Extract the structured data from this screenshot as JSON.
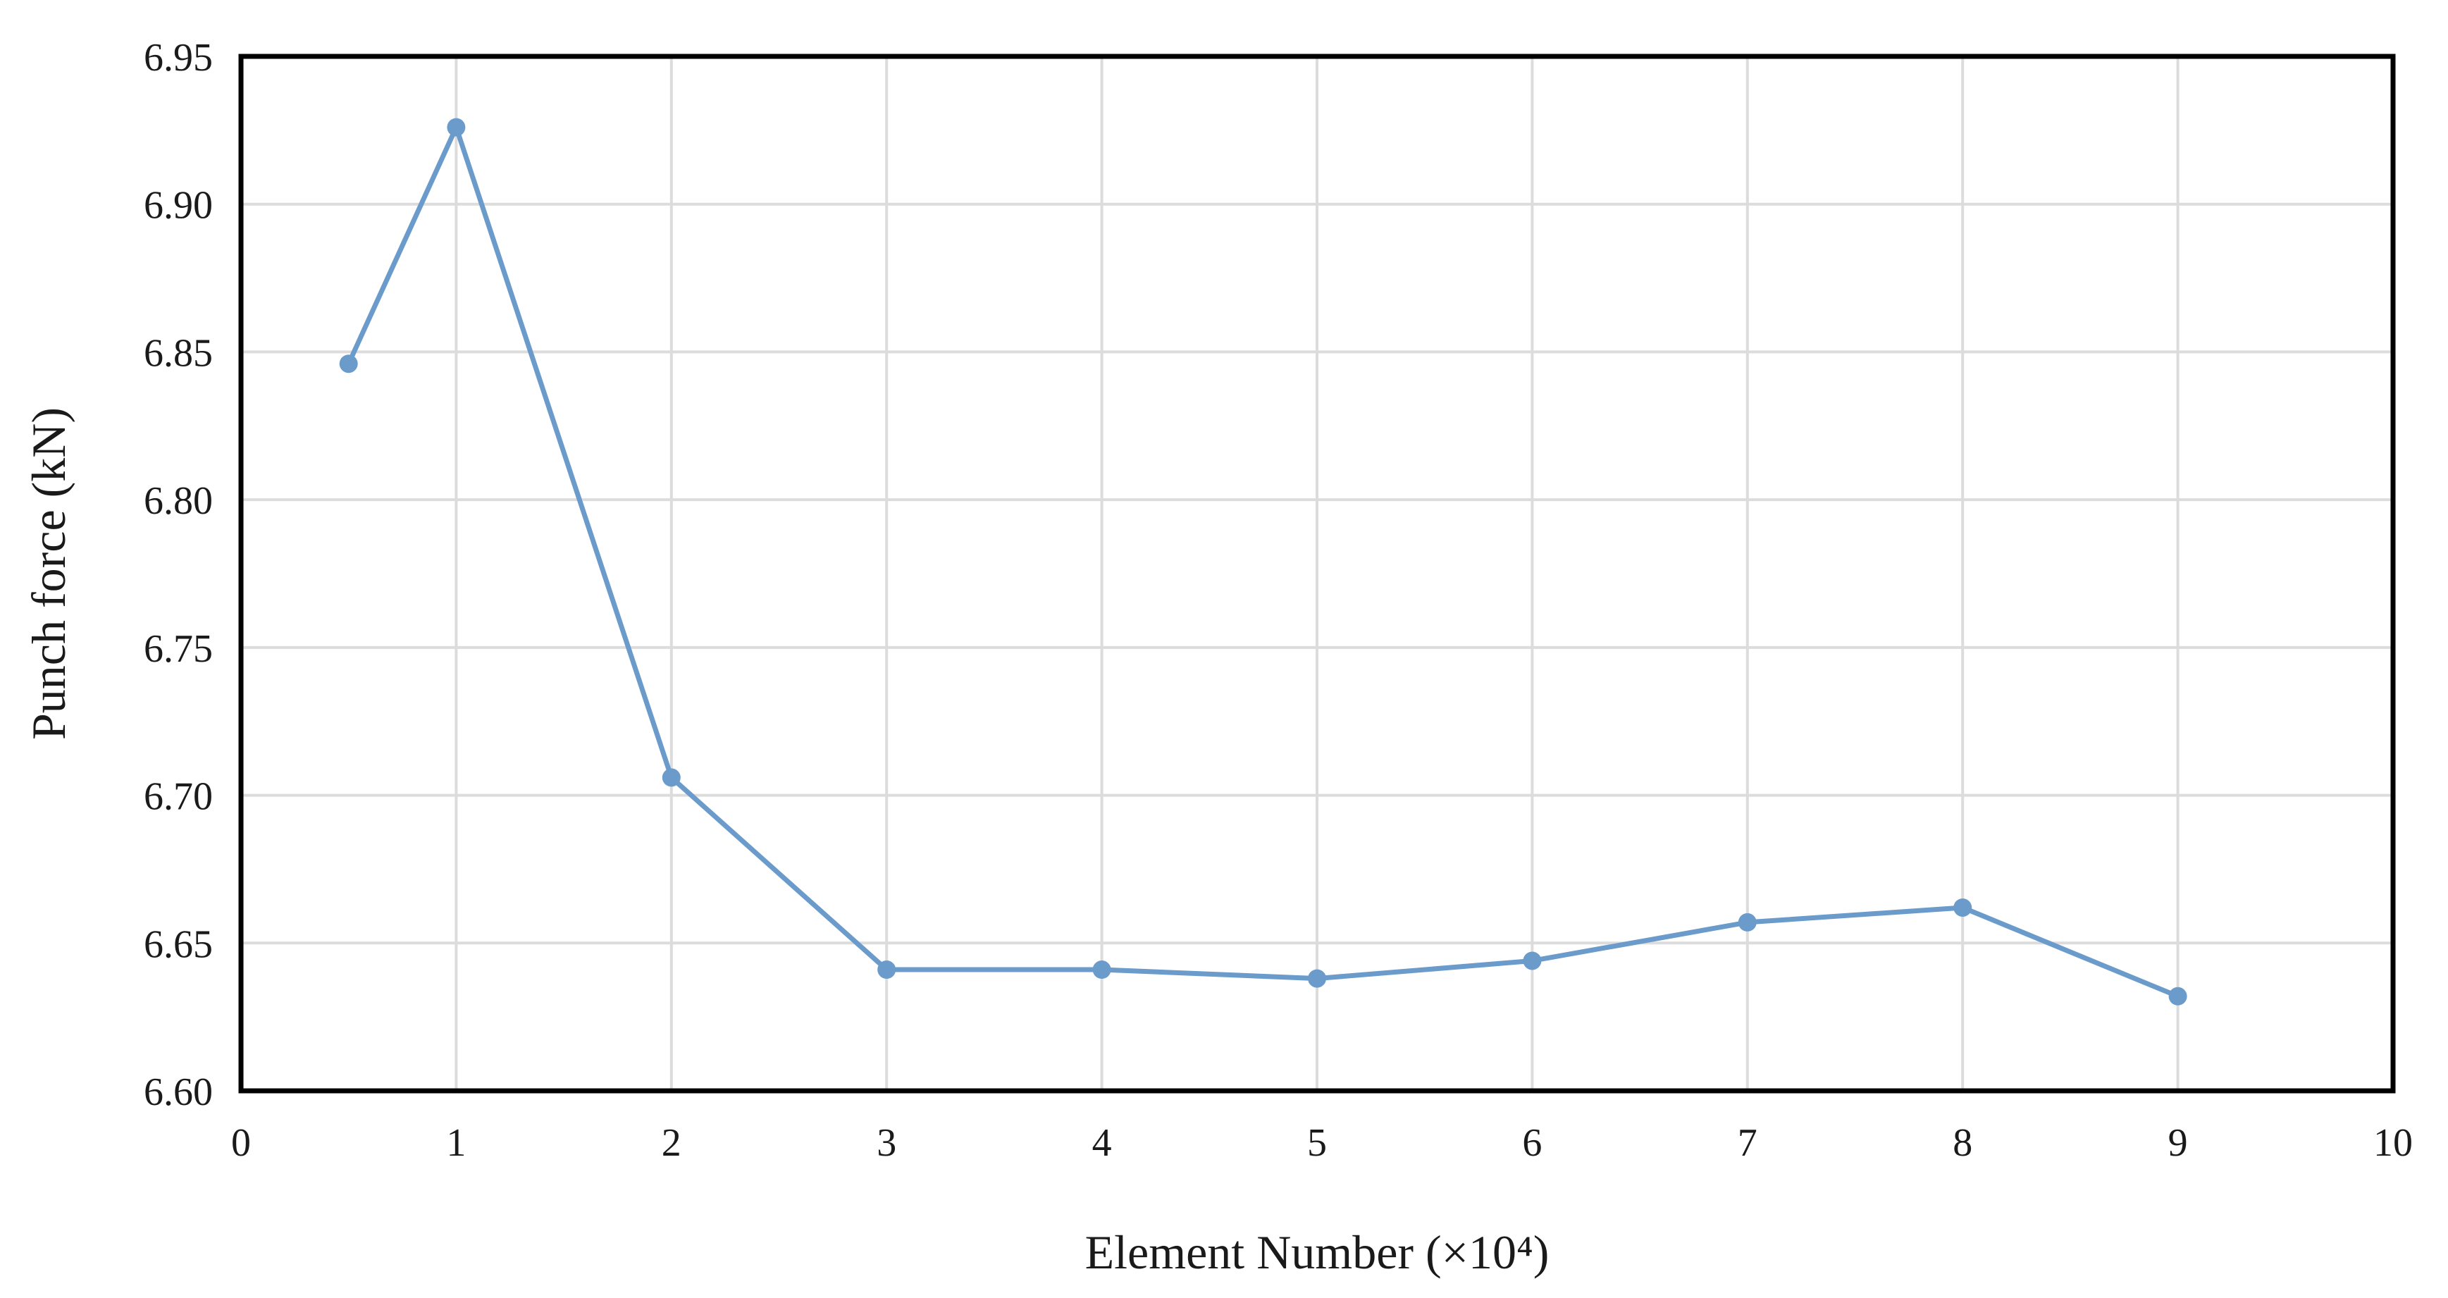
{
  "chart_data": {
    "type": "line",
    "title": "",
    "xlabel": "Element Number (×10⁴)",
    "ylabel": "Punch force (kN)",
    "xlim": [
      0,
      10
    ],
    "ylim": [
      6.6,
      6.95
    ],
    "x_ticks": [
      "0",
      "1",
      "2",
      "3",
      "4",
      "5",
      "6",
      "7",
      "8",
      "9",
      "10"
    ],
    "y_ticks": [
      "6.60",
      "6.65",
      "6.70",
      "6.75",
      "6.80",
      "6.85",
      "6.90",
      "6.95"
    ],
    "grid": true,
    "legend": "none",
    "color": "#6a9bcb",
    "series": [
      {
        "x": [
          0.5,
          1,
          2,
          3,
          4,
          5,
          6,
          7,
          8,
          9
        ],
        "y": [
          6.846,
          6.926,
          6.706,
          6.641,
          6.641,
          6.638,
          6.644,
          6.657,
          6.662,
          6.632
        ]
      }
    ]
  }
}
